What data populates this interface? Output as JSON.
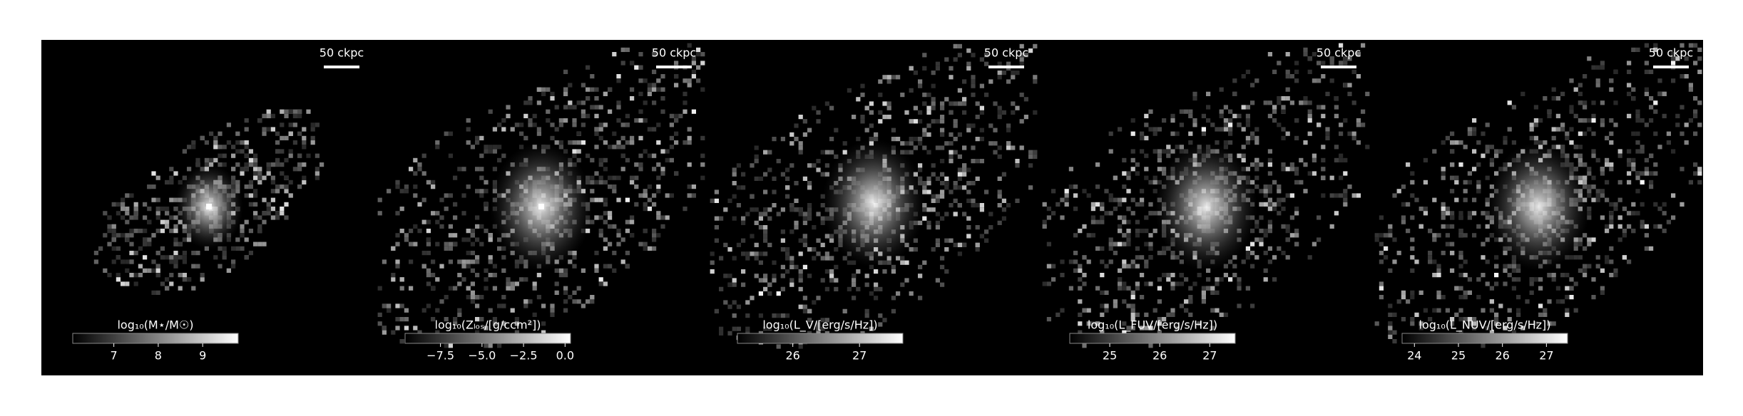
{
  "chart_data": [
    {
      "type": "image",
      "scale_bar": "50 ckpc",
      "colorbar_label": "log₁₀(M⋆/M☉)",
      "clim": [
        6.075,
        9.8
      ],
      "cticks": [
        7,
        8,
        9
      ]
    },
    {
      "type": "image",
      "scale_bar": "50 ckpc",
      "colorbar_label": "log₁₀(Zₗₒₛ/[g/ccm²])",
      "clim": [
        -9.63,
        0.33
      ],
      "cticks": [
        {
          "value": -7.5,
          "label": "−7.5"
        },
        {
          "value": -5.0,
          "label": "−5.0"
        },
        {
          "value": -2.5,
          "label": "−2.5"
        },
        {
          "value": 0.0,
          "label": "0.0"
        }
      ]
    },
    {
      "type": "image",
      "scale_bar": "50 ckpc",
      "colorbar_label": "log₁₀(L_V/[erg/s/Hz])",
      "clim": [
        25.17,
        27.65
      ],
      "cticks": [
        26,
        27
      ]
    },
    {
      "type": "image",
      "scale_bar": "50 ckpc",
      "colorbar_label": "log₁₀(L_FUV/[erg/s/Hz])",
      "clim": [
        24.2,
        27.51
      ],
      "cticks": [
        25,
        26,
        27
      ]
    },
    {
      "type": "image",
      "scale_bar": "50 ckpc",
      "colorbar_label": "log₁₀(L_NUV/[erg/s/Hz])",
      "clim": [
        23.72,
        27.48
      ],
      "cticks": [
        24,
        25,
        26,
        27
      ]
    }
  ]
}
